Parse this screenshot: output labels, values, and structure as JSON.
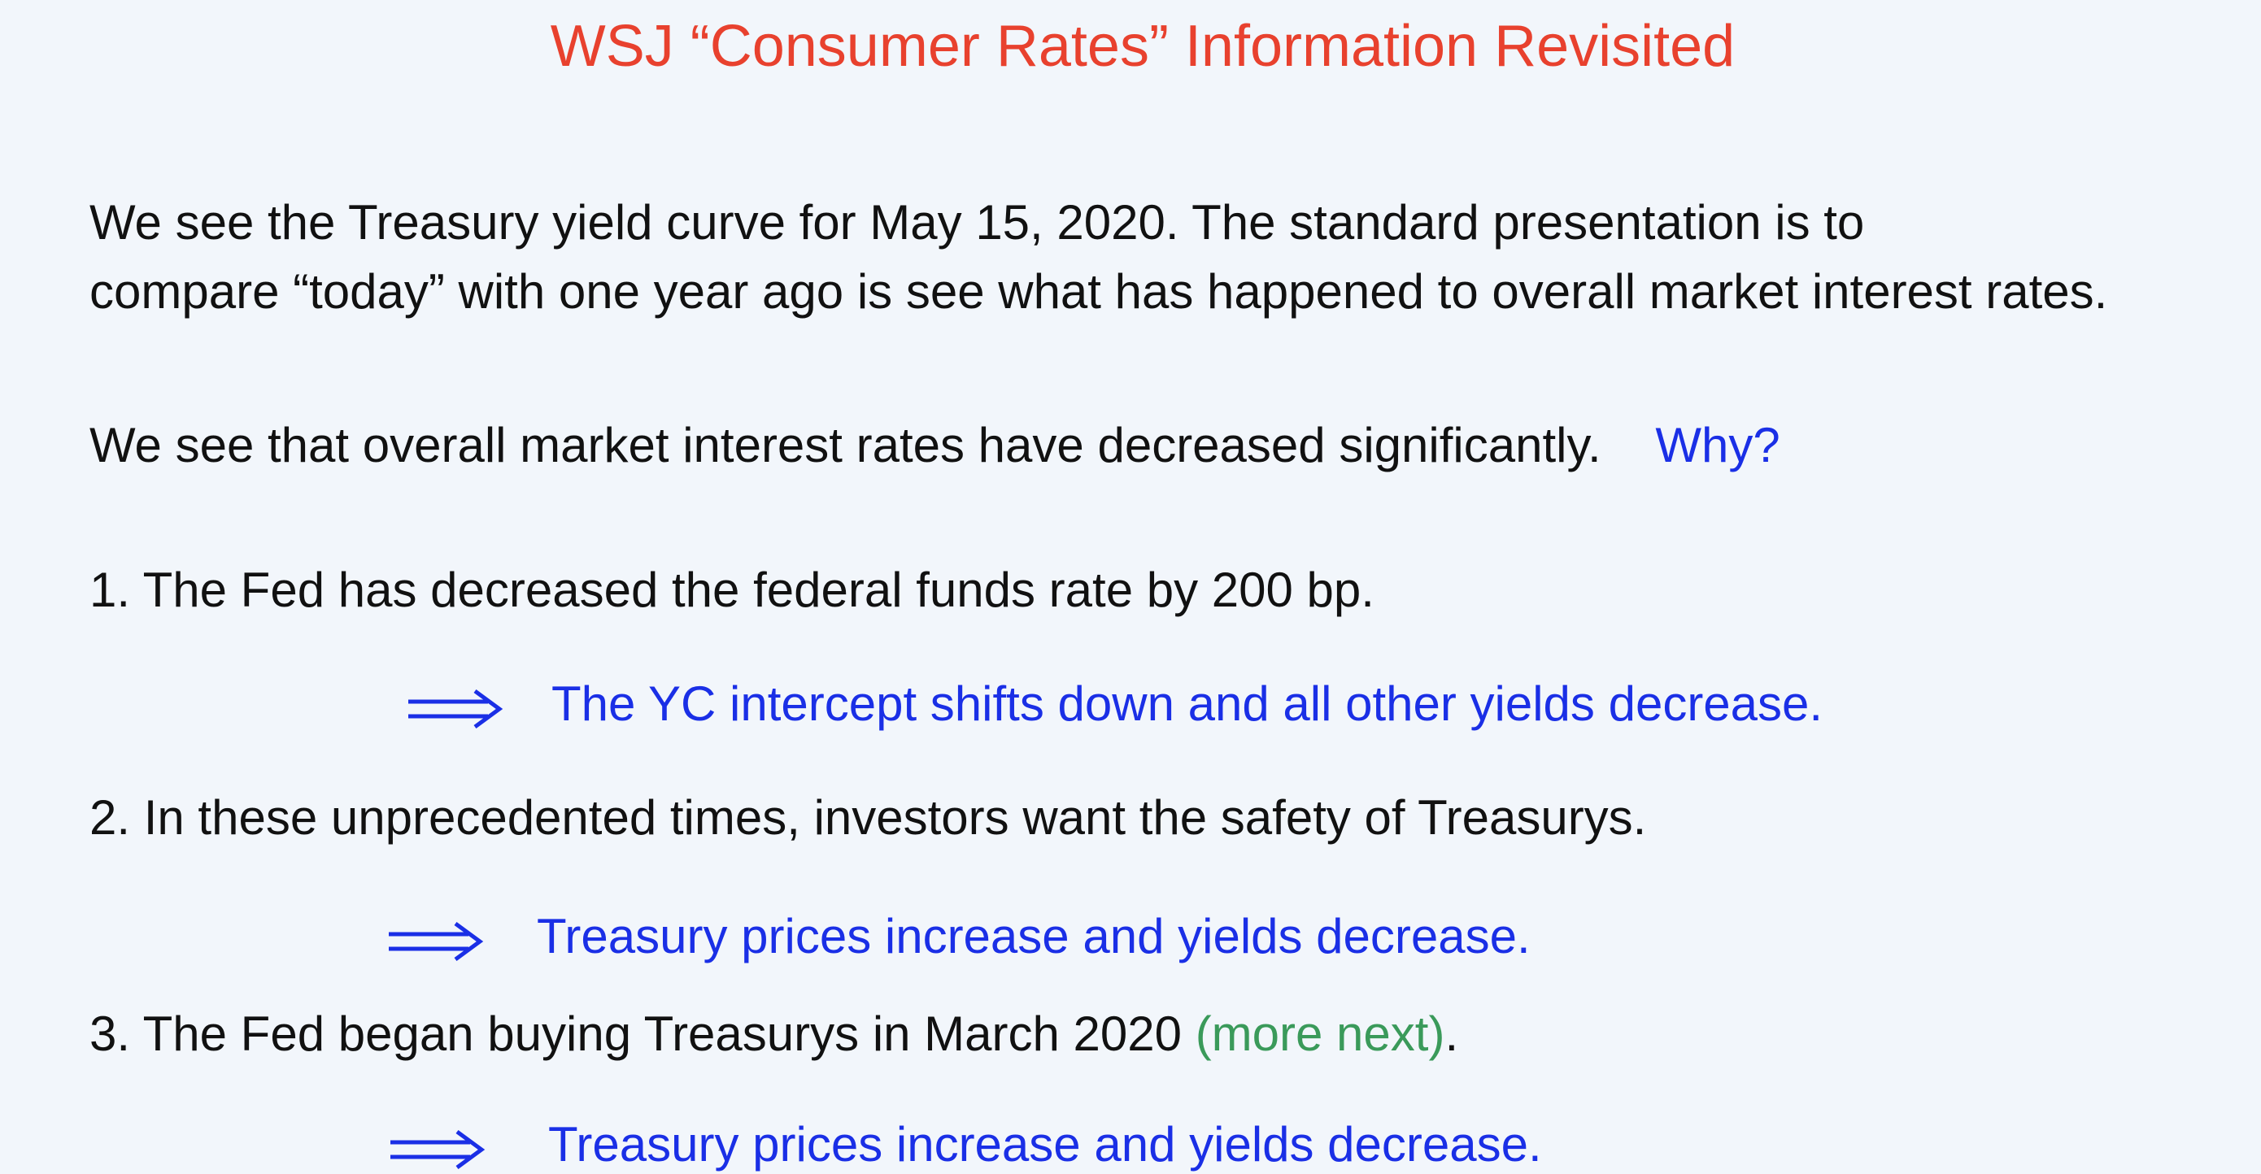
{
  "colors": {
    "background": "#f2f6fb",
    "title": "#e8412e",
    "body_text": "#111111",
    "blue_accent": "#1a2fe6",
    "green_accent": "#3a9a5a"
  },
  "title": "WSJ “Consumer Rates” Information Revisited",
  "intro": {
    "line1": "We see the Treasury yield curve for May 15, 2020.  The standard presentation is to",
    "line2": "compare “today” with one year ago is see what has happened to overall market interest rates."
  },
  "observation": {
    "text": "We see that overall market interest rates have decreased significantly.",
    "question": "Why?"
  },
  "points": [
    {
      "text": "1.  The Fed has decreased the federal funds rate by 200 bp.",
      "arrow_icon": "double-arrow-icon",
      "consequence": "The YC intercept shifts down and all other yields decrease."
    },
    {
      "text": "2. In these unprecedented times, investors want the safety of Treasurys.",
      "arrow_icon": "double-arrow-icon",
      "consequence": "Treasury prices increase and yields decrease."
    },
    {
      "text": "3. The Fed began buying Treasurys in March 2020 ",
      "note": "(more next)",
      "suffix": ".",
      "arrow_icon": "double-arrow-icon",
      "consequence": "Treasury prices increase and yields decrease."
    }
  ]
}
